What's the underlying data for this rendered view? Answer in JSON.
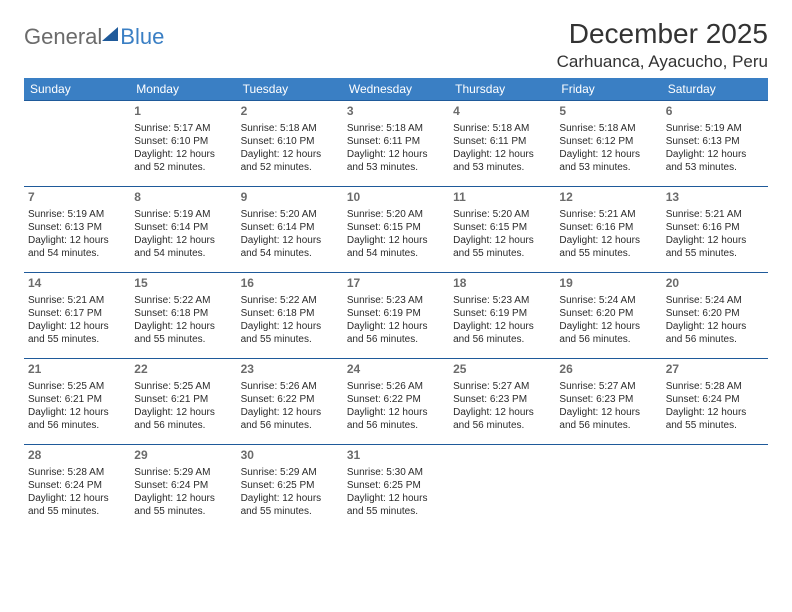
{
  "brand": {
    "name1": "General",
    "name2": "Blue"
  },
  "title": "December 2025",
  "location": "Carhuanca, Ayacucho, Peru",
  "colors": {
    "header_bg": "#3a7fc4",
    "row_border": "#1f5a9a",
    "text": "#2b2b2b",
    "daynum": "#6b6b6b",
    "logo_gray": "#6b6b6b",
    "logo_blue": "#3a7fc4"
  },
  "weekdays": [
    "Sunday",
    "Monday",
    "Tuesday",
    "Wednesday",
    "Thursday",
    "Friday",
    "Saturday"
  ],
  "weeks": [
    [
      null,
      {
        "d": "1",
        "sr": "5:17 AM",
        "ss": "6:10 PM",
        "dl": "12 hours and 52 minutes."
      },
      {
        "d": "2",
        "sr": "5:18 AM",
        "ss": "6:10 PM",
        "dl": "12 hours and 52 minutes."
      },
      {
        "d": "3",
        "sr": "5:18 AM",
        "ss": "6:11 PM",
        "dl": "12 hours and 53 minutes."
      },
      {
        "d": "4",
        "sr": "5:18 AM",
        "ss": "6:11 PM",
        "dl": "12 hours and 53 minutes."
      },
      {
        "d": "5",
        "sr": "5:18 AM",
        "ss": "6:12 PM",
        "dl": "12 hours and 53 minutes."
      },
      {
        "d": "6",
        "sr": "5:19 AM",
        "ss": "6:13 PM",
        "dl": "12 hours and 53 minutes."
      }
    ],
    [
      {
        "d": "7",
        "sr": "5:19 AM",
        "ss": "6:13 PM",
        "dl": "12 hours and 54 minutes."
      },
      {
        "d": "8",
        "sr": "5:19 AM",
        "ss": "6:14 PM",
        "dl": "12 hours and 54 minutes."
      },
      {
        "d": "9",
        "sr": "5:20 AM",
        "ss": "6:14 PM",
        "dl": "12 hours and 54 minutes."
      },
      {
        "d": "10",
        "sr": "5:20 AM",
        "ss": "6:15 PM",
        "dl": "12 hours and 54 minutes."
      },
      {
        "d": "11",
        "sr": "5:20 AM",
        "ss": "6:15 PM",
        "dl": "12 hours and 55 minutes."
      },
      {
        "d": "12",
        "sr": "5:21 AM",
        "ss": "6:16 PM",
        "dl": "12 hours and 55 minutes."
      },
      {
        "d": "13",
        "sr": "5:21 AM",
        "ss": "6:16 PM",
        "dl": "12 hours and 55 minutes."
      }
    ],
    [
      {
        "d": "14",
        "sr": "5:21 AM",
        "ss": "6:17 PM",
        "dl": "12 hours and 55 minutes."
      },
      {
        "d": "15",
        "sr": "5:22 AM",
        "ss": "6:18 PM",
        "dl": "12 hours and 55 minutes."
      },
      {
        "d": "16",
        "sr": "5:22 AM",
        "ss": "6:18 PM",
        "dl": "12 hours and 55 minutes."
      },
      {
        "d": "17",
        "sr": "5:23 AM",
        "ss": "6:19 PM",
        "dl": "12 hours and 56 minutes."
      },
      {
        "d": "18",
        "sr": "5:23 AM",
        "ss": "6:19 PM",
        "dl": "12 hours and 56 minutes."
      },
      {
        "d": "19",
        "sr": "5:24 AM",
        "ss": "6:20 PM",
        "dl": "12 hours and 56 minutes."
      },
      {
        "d": "20",
        "sr": "5:24 AM",
        "ss": "6:20 PM",
        "dl": "12 hours and 56 minutes."
      }
    ],
    [
      {
        "d": "21",
        "sr": "5:25 AM",
        "ss": "6:21 PM",
        "dl": "12 hours and 56 minutes."
      },
      {
        "d": "22",
        "sr": "5:25 AM",
        "ss": "6:21 PM",
        "dl": "12 hours and 56 minutes."
      },
      {
        "d": "23",
        "sr": "5:26 AM",
        "ss": "6:22 PM",
        "dl": "12 hours and 56 minutes."
      },
      {
        "d": "24",
        "sr": "5:26 AM",
        "ss": "6:22 PM",
        "dl": "12 hours and 56 minutes."
      },
      {
        "d": "25",
        "sr": "5:27 AM",
        "ss": "6:23 PM",
        "dl": "12 hours and 56 minutes."
      },
      {
        "d": "26",
        "sr": "5:27 AM",
        "ss": "6:23 PM",
        "dl": "12 hours and 56 minutes."
      },
      {
        "d": "27",
        "sr": "5:28 AM",
        "ss": "6:24 PM",
        "dl": "12 hours and 55 minutes."
      }
    ],
    [
      {
        "d": "28",
        "sr": "5:28 AM",
        "ss": "6:24 PM",
        "dl": "12 hours and 55 minutes."
      },
      {
        "d": "29",
        "sr": "5:29 AM",
        "ss": "6:24 PM",
        "dl": "12 hours and 55 minutes."
      },
      {
        "d": "30",
        "sr": "5:29 AM",
        "ss": "6:25 PM",
        "dl": "12 hours and 55 minutes."
      },
      {
        "d": "31",
        "sr": "5:30 AM",
        "ss": "6:25 PM",
        "dl": "12 hours and 55 minutes."
      },
      null,
      null,
      null
    ]
  ],
  "labels": {
    "sunrise": "Sunrise:",
    "sunset": "Sunset:",
    "daylight": "Daylight:"
  }
}
